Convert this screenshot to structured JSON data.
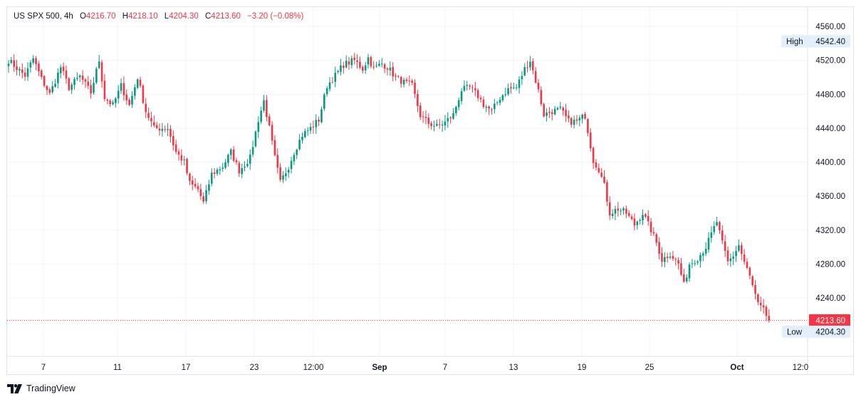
{
  "header": {
    "symbol": "US SPX 500",
    "interval": "4h",
    "o_label": "O",
    "o_value": "4216.70",
    "h_label": "H",
    "h_value": "4218.10",
    "l_label": "L",
    "l_value": "4204.30",
    "c_label": "C",
    "c_value": "4213.60",
    "change": "−3.20 (−0.08%)"
  },
  "footer": {
    "brand": "TradingView"
  },
  "colors": {
    "up": "#089981",
    "down": "#f23645",
    "grid": "#f0f3fa",
    "badge_bg": "#e3effd",
    "last_price_bg": "#f23645"
  },
  "chart_data": {
    "type": "candlestick",
    "y_ticks": [
      "4560.00",
      "4520.00",
      "4480.00",
      "4440.00",
      "4400.00",
      "4360.00",
      "4320.00",
      "4280.00",
      "4240.00"
    ],
    "ylim": [
      4170,
      4570
    ],
    "x_ticks": [
      "7",
      "11",
      "17",
      "23",
      "12:00",
      "Sep",
      "7",
      "13",
      "19",
      "25",
      "Oct",
      "12:0"
    ],
    "high_label": "High",
    "high_value": "4542.40",
    "low_label": "Low",
    "low_value": "4204.30",
    "last_price": "4213.60",
    "grid": true,
    "anchors": [
      [
        0,
        4520
      ],
      [
        6,
        4502
      ],
      [
        9,
        4522
      ],
      [
        12,
        4498
      ],
      [
        15,
        4480
      ],
      [
        19,
        4512
      ],
      [
        22,
        4488
      ],
      [
        26,
        4501
      ],
      [
        30,
        4482
      ],
      [
        33,
        4520
      ],
      [
        35,
        4476
      ],
      [
        38,
        4467
      ],
      [
        41,
        4490
      ],
      [
        44,
        4467
      ],
      [
        47,
        4500
      ],
      [
        50,
        4460
      ],
      [
        53,
        4440
      ],
      [
        58,
        4440
      ],
      [
        61,
        4412
      ],
      [
        64,
        4400
      ],
      [
        66,
        4375
      ],
      [
        69,
        4368
      ],
      [
        71,
        4352
      ],
      [
        74,
        4386
      ],
      [
        78,
        4395
      ],
      [
        81,
        4412
      ],
      [
        84,
        4390
      ],
      [
        88,
        4405
      ],
      [
        91,
        4450
      ],
      [
        93,
        4472
      ],
      [
        95,
        4440
      ],
      [
        97,
        4405
      ],
      [
        99,
        4376
      ],
      [
        102,
        4395
      ],
      [
        104,
        4412
      ],
      [
        107,
        4432
      ],
      [
        110,
        4440
      ],
      [
        113,
        4450
      ],
      [
        116,
        4490
      ],
      [
        119,
        4502
      ],
      [
        122,
        4515
      ],
      [
        126,
        4520
      ],
      [
        129,
        4510
      ],
      [
        131,
        4523
      ],
      [
        133,
        4510
      ],
      [
        136,
        4516
      ],
      [
        138,
        4512
      ],
      [
        141,
        4500
      ],
      [
        144,
        4494
      ],
      [
        147,
        4490
      ],
      [
        150,
        4455
      ],
      [
        153,
        4446
      ],
      [
        156,
        4442
      ],
      [
        159,
        4447
      ],
      [
        162,
        4456
      ],
      [
        165,
        4485
      ],
      [
        168,
        4488
      ],
      [
        171,
        4478
      ],
      [
        173,
        4468
      ],
      [
        176,
        4460
      ],
      [
        179,
        4476
      ],
      [
        182,
        4486
      ],
      [
        185,
        4488
      ],
      [
        188,
        4510
      ],
      [
        190,
        4520
      ],
      [
        193,
        4484
      ],
      [
        195,
        4456
      ],
      [
        198,
        4460
      ],
      [
        201,
        4462
      ],
      [
        204,
        4448
      ],
      [
        207,
        4448
      ],
      [
        210,
        4455
      ],
      [
        213,
        4402
      ],
      [
        215,
        4392
      ],
      [
        217,
        4372
      ],
      [
        219,
        4340
      ],
      [
        222,
        4345
      ],
      [
        225,
        4340
      ],
      [
        228,
        4326
      ],
      [
        231,
        4340
      ],
      [
        234,
        4320
      ],
      [
        236,
        4305
      ],
      [
        238,
        4285
      ],
      [
        241,
        4292
      ],
      [
        244,
        4280
      ],
      [
        246,
        4255
      ],
      [
        248,
        4280
      ],
      [
        251,
        4287
      ],
      [
        254,
        4300
      ],
      [
        256,
        4315
      ],
      [
        258,
        4330
      ],
      [
        260,
        4304
      ],
      [
        262,
        4282
      ],
      [
        264,
        4290
      ],
      [
        266,
        4302
      ],
      [
        268,
        4282
      ],
      [
        270,
        4265
      ],
      [
        273,
        4232
      ],
      [
        275,
        4225
      ],
      [
        277,
        4213.6
      ]
    ]
  }
}
